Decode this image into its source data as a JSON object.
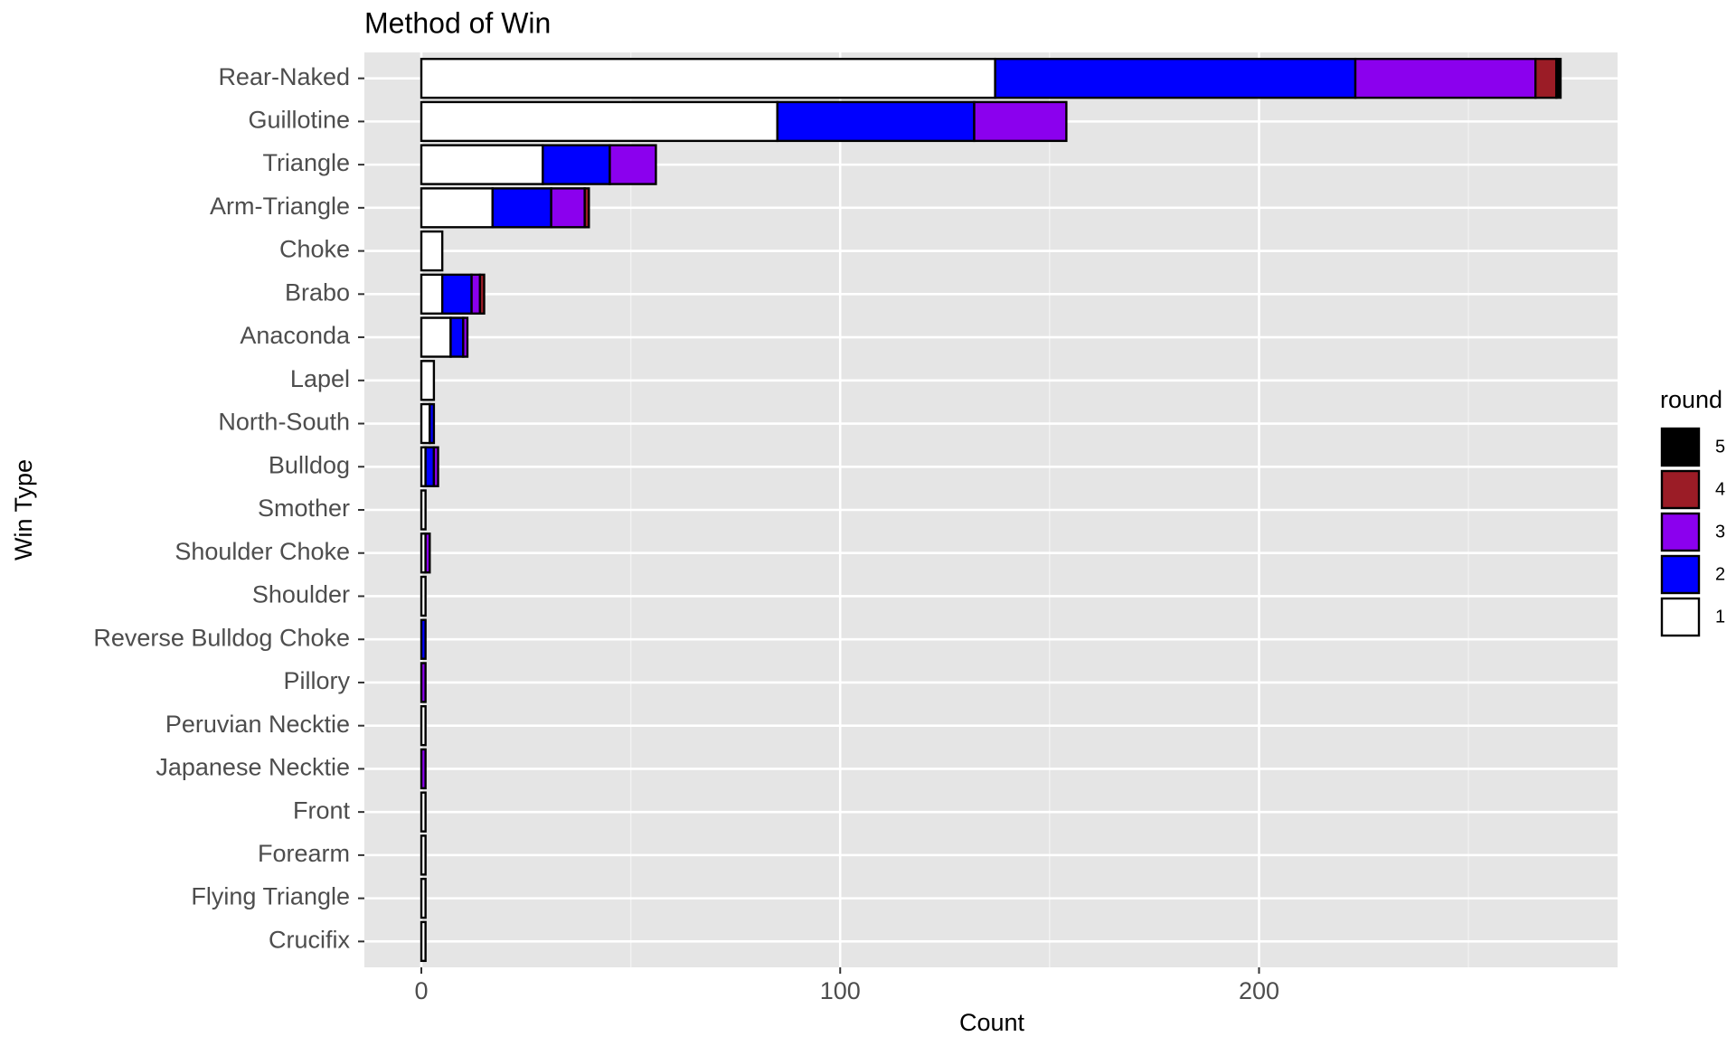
{
  "chart_data": {
    "type": "stacked-bar-horizontal",
    "title": "Method of Win",
    "x_label": "Count",
    "y_label": "Win Type",
    "legend_title": "round",
    "categories": [
      "Rear-Naked",
      "Guillotine",
      "Triangle",
      "Arm-Triangle",
      "Choke",
      "Brabo",
      "Anaconda",
      "Lapel",
      "North-South",
      "Bulldog",
      "Smother",
      "Shoulder Choke",
      "Shoulder",
      "Reverse Bulldog Choke",
      "Pillory",
      "Peruvian Necktie",
      "Japanese Necktie",
      "Front",
      "Forearm",
      "Flying Triangle",
      "Crucifix"
    ],
    "series": [
      {
        "name": "1",
        "color": "#ffffff",
        "values": [
          137,
          85,
          29,
          17,
          5,
          5,
          7,
          3,
          2,
          1,
          1,
          1,
          1,
          0,
          0,
          1,
          0,
          1,
          1,
          1,
          1
        ]
      },
      {
        "name": "2",
        "color": "#0000ff",
        "values": [
          86,
          47,
          16,
          14,
          0,
          7,
          3,
          0,
          1,
          2,
          0,
          0,
          0,
          1,
          0,
          0,
          0,
          0,
          0,
          0,
          0
        ]
      },
      {
        "name": "3",
        "color": "#8b00ee",
        "values": [
          43,
          22,
          11,
          8,
          0,
          2,
          1,
          0,
          0,
          1,
          0,
          1,
          0,
          0,
          1,
          0,
          1,
          0,
          0,
          0,
          0
        ]
      },
      {
        "name": "4",
        "color": "#9b1c26",
        "values": [
          5,
          0,
          0,
          1,
          0,
          1,
          0,
          0,
          0,
          0,
          0,
          0,
          0,
          0,
          0,
          0,
          0,
          0,
          0,
          0,
          0
        ]
      },
      {
        "name": "5",
        "color": "#000000",
        "values": [
          1,
          0,
          0,
          0,
          0,
          0,
          0,
          0,
          0,
          0,
          0,
          0,
          0,
          0,
          0,
          0,
          0,
          0,
          0,
          0,
          0
        ]
      }
    ],
    "xlim": [
      -13.6,
      285.6
    ],
    "xticks": [
      0,
      100,
      200
    ],
    "grid": true
  }
}
